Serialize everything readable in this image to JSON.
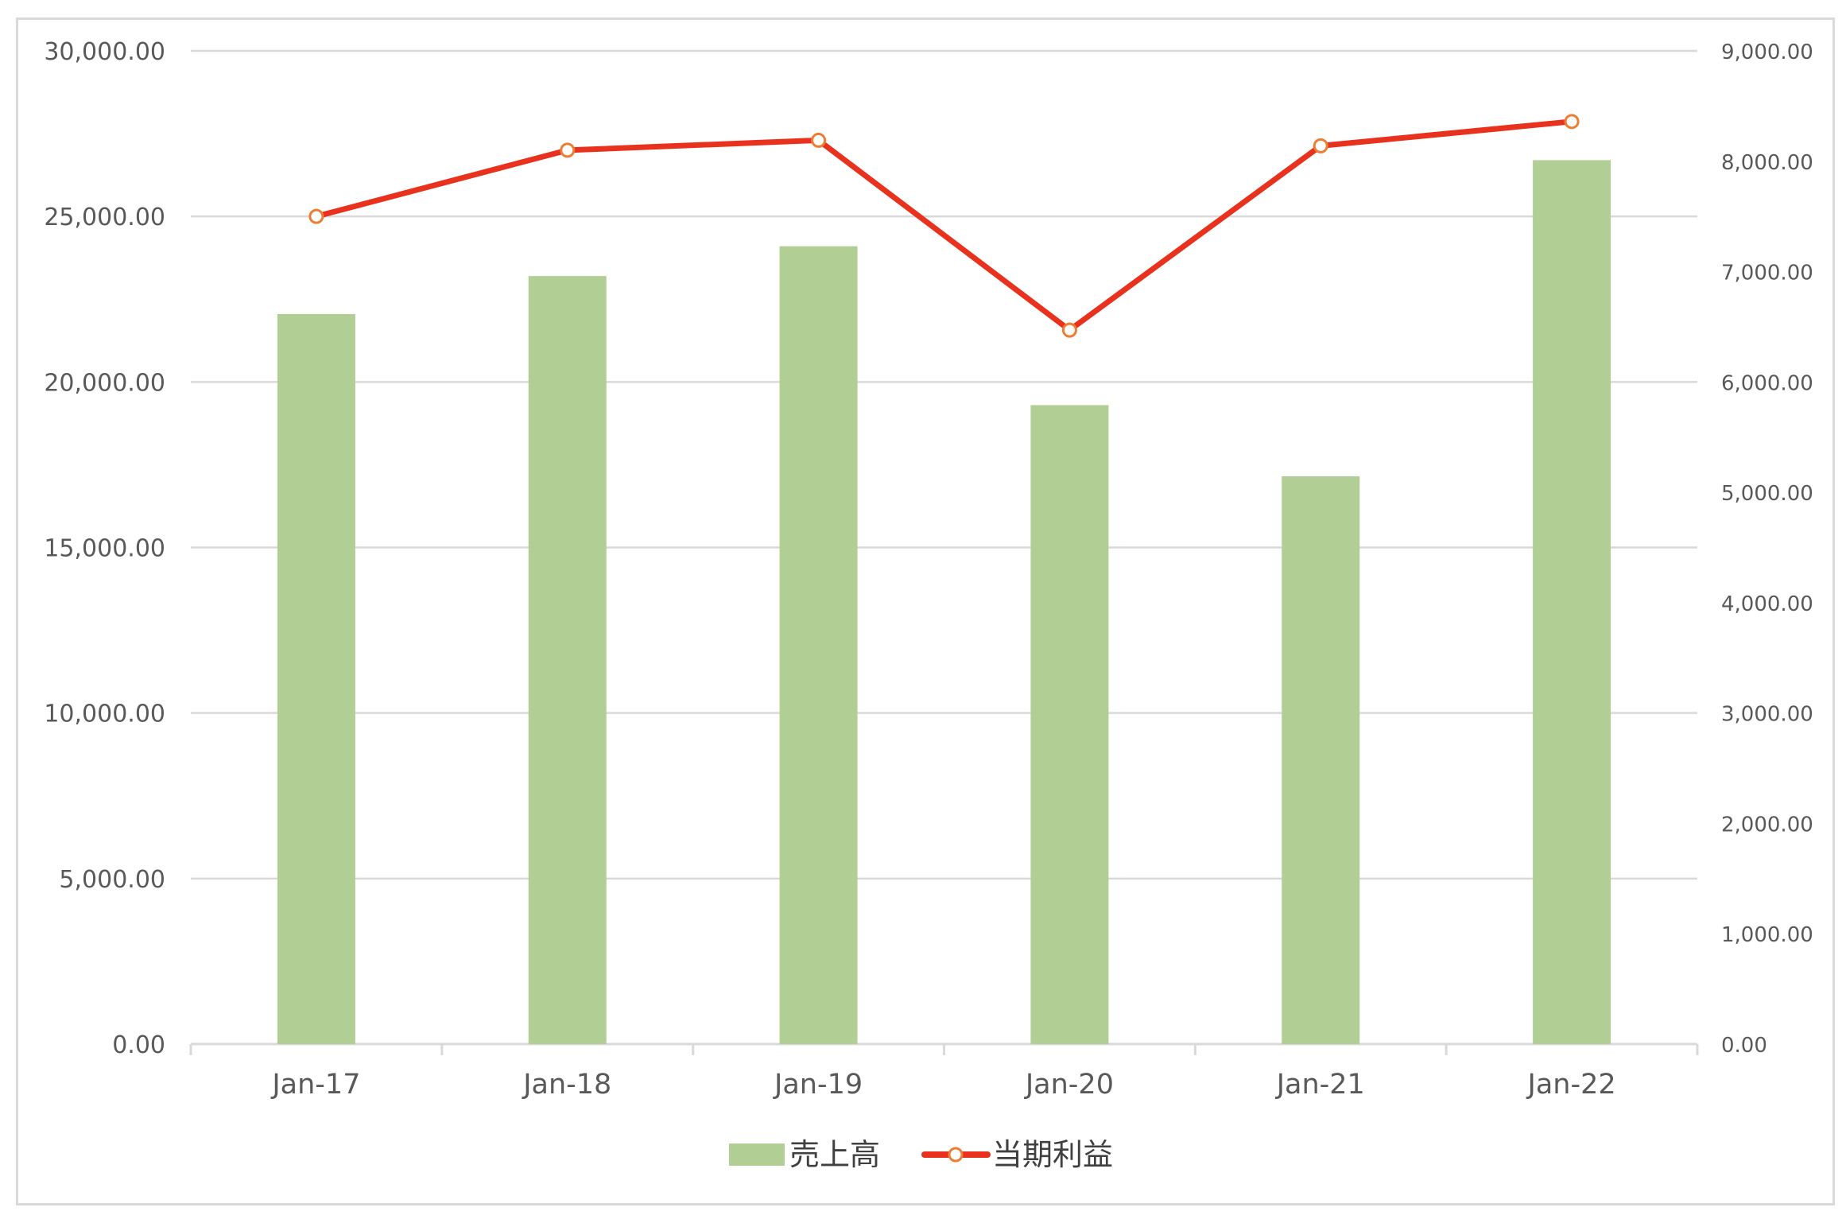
{
  "chart_data": {
    "type": "bar",
    "categories": [
      "Jan-17",
      "Jan-18",
      "Jan-19",
      "Jan-20",
      "Jan-21",
      "Jan-22"
    ],
    "series": [
      {
        "name": "売上高",
        "type": "bar",
        "axis": "left",
        "color": "#b1cf95",
        "values": [
          22050,
          23200,
          24100,
          19300,
          17150,
          26700
        ]
      },
      {
        "name": "当期利益",
        "type": "line",
        "axis": "right",
        "color": "#e8321e",
        "marker_fill": "#ffffff",
        "marker_stroke": "#ed7d31",
        "values": [
          7500,
          8100,
          8190,
          6470,
          8140,
          8360
        ]
      }
    ],
    "y_left": {
      "ylim": [
        0,
        30000
      ],
      "ticks": [
        0,
        5000,
        10000,
        15000,
        20000,
        25000,
        30000
      ],
      "tick_labels": [
        "0.00",
        "5,000.00",
        "10,000.00",
        "15,000.00",
        "20,000.00",
        "25,000.00",
        "30,000.00"
      ]
    },
    "y_right": {
      "ylim": [
        0,
        9000
      ],
      "ticks": [
        0,
        1000,
        2000,
        3000,
        4000,
        5000,
        6000,
        7000,
        8000,
        9000
      ],
      "tick_labels": [
        "0.00",
        "1,000.00",
        "2,000.00",
        "3,000.00",
        "4,000.00",
        "5,000.00",
        "6,000.00",
        "7,000.00",
        "8,000.00",
        "9,000.00"
      ]
    },
    "grid": true,
    "grid_color": "#d9d9d9",
    "legend_position": "bottom"
  }
}
